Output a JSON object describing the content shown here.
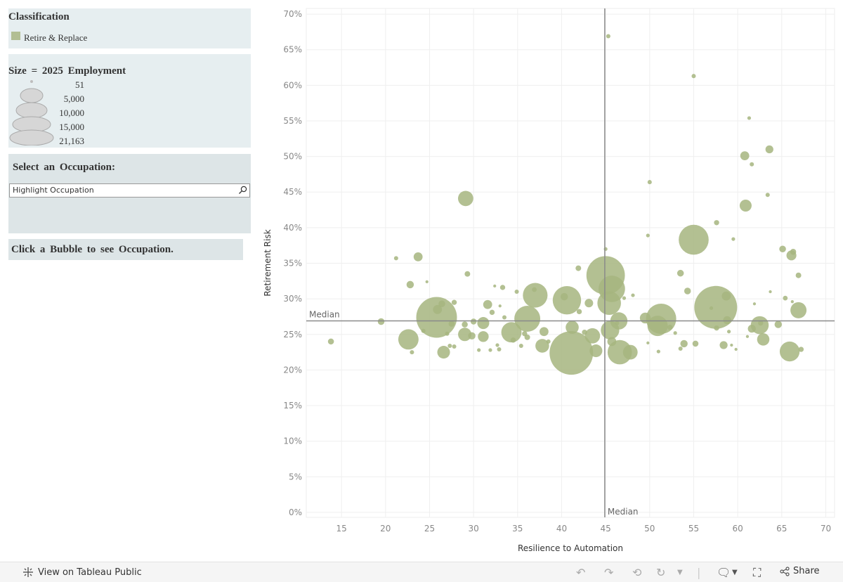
{
  "legend": {
    "classification_title": "Classification",
    "classification_label": "Retire & Replace",
    "classification_color": "#b2be93",
    "size_title": "Size = 2025 Employment",
    "size_labels": [
      "51",
      "5,000",
      "10,000",
      "15,000",
      "21,163"
    ]
  },
  "selector": {
    "title": "Select an Occupation:",
    "placeholder": "Highlight Occupation",
    "search_icon": "search-icon"
  },
  "note": "Click a Bubble to see Occupation.",
  "footer": {
    "view_label": "View on Tableau Public",
    "share_label": "Share",
    "icons": [
      "tableau-logo-icon",
      "undo-icon",
      "redo-icon",
      "revert-icon",
      "refresh-icon",
      "comment-icon",
      "fullscreen-icon",
      "share-icon"
    ]
  },
  "chart_data": {
    "type": "scatter",
    "xlabel": "Resilience to Automation",
    "ylabel": "Retirement Risk",
    "xlim": [
      11,
      71
    ],
    "ylim": [
      -0.7,
      70.8
    ],
    "xticks": [
      15,
      20,
      25,
      30,
      35,
      40,
      45,
      50,
      55,
      60,
      65,
      70
    ],
    "yticks": [
      0,
      5,
      10,
      15,
      20,
      25,
      30,
      35,
      40,
      45,
      50,
      55,
      60,
      65,
      70
    ],
    "ytick_suffix": "%",
    "grid": true,
    "color": "#a6b57f",
    "median_x": 44.9,
    "median_y": 26.9,
    "median_label_x": "Median",
    "median_label_y": "Median",
    "points": [
      {
        "x": 13.8,
        "y": 24.0,
        "size": 400
      },
      {
        "x": 19.5,
        "y": 26.8,
        "size": 500
      },
      {
        "x": 21.2,
        "y": 35.7,
        "size": 200
      },
      {
        "x": 22.8,
        "y": 32.0,
        "size": 600
      },
      {
        "x": 23.0,
        "y": 22.5,
        "size": 200
      },
      {
        "x": 22.6,
        "y": 24.3,
        "size": 4600
      },
      {
        "x": 23.7,
        "y": 35.9,
        "size": 900
      },
      {
        "x": 24.3,
        "y": 25.5,
        "size": 200
      },
      {
        "x": 24.7,
        "y": 32.4,
        "size": 100
      },
      {
        "x": 25.8,
        "y": 27.4,
        "size": 18500
      },
      {
        "x": 25.9,
        "y": 28.5,
        "size": 900
      },
      {
        "x": 26.6,
        "y": 22.5,
        "size": 1800
      },
      {
        "x": 26.4,
        "y": 29.3,
        "size": 500
      },
      {
        "x": 27.0,
        "y": 25.1,
        "size": 200
      },
      {
        "x": 27.3,
        "y": 23.4,
        "size": 200
      },
      {
        "x": 27.5,
        "y": 26.5,
        "size": 400
      },
      {
        "x": 27.8,
        "y": 29.5,
        "size": 300
      },
      {
        "x": 27.8,
        "y": 23.3,
        "size": 200
      },
      {
        "x": 29.1,
        "y": 44.1,
        "size": 2600
      },
      {
        "x": 29.0,
        "y": 26.4,
        "size": 400
      },
      {
        "x": 29.0,
        "y": 25.0,
        "size": 2000
      },
      {
        "x": 29.3,
        "y": 33.5,
        "size": 350
      },
      {
        "x": 29.8,
        "y": 24.8,
        "size": 600
      },
      {
        "x": 30.0,
        "y": 26.8,
        "size": 400
      },
      {
        "x": 30.6,
        "y": 22.8,
        "size": 150
      },
      {
        "x": 31.1,
        "y": 26.6,
        "size": 1600
      },
      {
        "x": 31.1,
        "y": 24.7,
        "size": 1300
      },
      {
        "x": 31.6,
        "y": 29.2,
        "size": 900
      },
      {
        "x": 31.9,
        "y": 22.8,
        "size": 150
      },
      {
        "x": 32.1,
        "y": 28.1,
        "size": 300
      },
      {
        "x": 32.4,
        "y": 31.8,
        "size": 100
      },
      {
        "x": 32.7,
        "y": 23.5,
        "size": 150
      },
      {
        "x": 32.9,
        "y": 22.9,
        "size": 200
      },
      {
        "x": 33.0,
        "y": 29.0,
        "size": 100
      },
      {
        "x": 33.3,
        "y": 31.6,
        "size": 300
      },
      {
        "x": 33.5,
        "y": 27.4,
        "size": 200
      },
      {
        "x": 34.3,
        "y": 25.3,
        "size": 4600
      },
      {
        "x": 34.5,
        "y": 24.2,
        "size": 300
      },
      {
        "x": 34.9,
        "y": 31.0,
        "size": 200
      },
      {
        "x": 35.4,
        "y": 23.4,
        "size": 200
      },
      {
        "x": 35.8,
        "y": 25.1,
        "size": 300
      },
      {
        "x": 36.1,
        "y": 27.2,
        "size": 7500
      },
      {
        "x": 36.1,
        "y": 24.6,
        "size": 350
      },
      {
        "x": 37.0,
        "y": 30.5,
        "size": 6800
      },
      {
        "x": 36.9,
        "y": 31.3,
        "size": 250
      },
      {
        "x": 37.8,
        "y": 23.4,
        "size": 2100
      },
      {
        "x": 38.0,
        "y": 25.4,
        "size": 900
      },
      {
        "x": 38.5,
        "y": 24.0,
        "size": 200
      },
      {
        "x": 40.6,
        "y": 29.8,
        "size": 9000
      },
      {
        "x": 40.3,
        "y": 30.3,
        "size": 600
      },
      {
        "x": 41.1,
        "y": 22.4,
        "size": 21163
      },
      {
        "x": 41.2,
        "y": 26.0,
        "size": 1900
      },
      {
        "x": 41.9,
        "y": 34.3,
        "size": 350
      },
      {
        "x": 42.0,
        "y": 28.2,
        "size": 300
      },
      {
        "x": 42.6,
        "y": 25.3,
        "size": 300
      },
      {
        "x": 43.1,
        "y": 29.4,
        "size": 800
      },
      {
        "x": 43.5,
        "y": 24.8,
        "size": 2600
      },
      {
        "x": 43.9,
        "y": 22.7,
        "size": 1800
      },
      {
        "x": 45.0,
        "y": 33.3,
        "size": 16500
      },
      {
        "x": 45.0,
        "y": 37.0,
        "size": 150
      },
      {
        "x": 45.3,
        "y": 66.9,
        "size": 200
      },
      {
        "x": 45.7,
        "y": 31.4,
        "size": 7800
      },
      {
        "x": 45.4,
        "y": 29.4,
        "size": 6200
      },
      {
        "x": 45.5,
        "y": 25.6,
        "size": 3800
      },
      {
        "x": 45.7,
        "y": 24.0,
        "size": 900
      },
      {
        "x": 46.3,
        "y": 26.6,
        "size": 200
      },
      {
        "x": 46.5,
        "y": 26.9,
        "size": 3300
      },
      {
        "x": 46.6,
        "y": 22.5,
        "size": 6600
      },
      {
        "x": 47.1,
        "y": 30.1,
        "size": 150
      },
      {
        "x": 47.8,
        "y": 22.5,
        "size": 2400
      },
      {
        "x": 48.1,
        "y": 30.5,
        "size": 150
      },
      {
        "x": 49.5,
        "y": 27.3,
        "size": 1300
      },
      {
        "x": 49.8,
        "y": 23.8,
        "size": 100
      },
      {
        "x": 49.8,
        "y": 38.9,
        "size": 150
      },
      {
        "x": 50.0,
        "y": 46.4,
        "size": 200
      },
      {
        "x": 50.9,
        "y": 26.2,
        "size": 4600
      },
      {
        "x": 51.3,
        "y": 27.2,
        "size": 10200
      },
      {
        "x": 51.0,
        "y": 22.6,
        "size": 150
      },
      {
        "x": 52.3,
        "y": 26.0,
        "size": 300
      },
      {
        "x": 52.9,
        "y": 25.2,
        "size": 150
      },
      {
        "x": 53.5,
        "y": 33.6,
        "size": 500
      },
      {
        "x": 53.5,
        "y": 23.0,
        "size": 200
      },
      {
        "x": 53.9,
        "y": 23.7,
        "size": 600
      },
      {
        "x": 54.3,
        "y": 31.1,
        "size": 500
      },
      {
        "x": 55.0,
        "y": 61.3,
        "size": 200
      },
      {
        "x": 55.0,
        "y": 38.3,
        "size": 10000
      },
      {
        "x": 55.2,
        "y": 23.7,
        "size": 400
      },
      {
        "x": 57.0,
        "y": 28.7,
        "size": 150
      },
      {
        "x": 57.6,
        "y": 40.7,
        "size": 300
      },
      {
        "x": 57.6,
        "y": 25.9,
        "size": 300
      },
      {
        "x": 57.5,
        "y": 28.8,
        "size": 20500
      },
      {
        "x": 58.4,
        "y": 23.5,
        "size": 700
      },
      {
        "x": 58.7,
        "y": 30.4,
        "size": 900
      },
      {
        "x": 58.8,
        "y": 27.0,
        "size": 700
      },
      {
        "x": 59.0,
        "y": 25.4,
        "size": 150
      },
      {
        "x": 59.3,
        "y": 23.5,
        "size": 100
      },
      {
        "x": 59.5,
        "y": 38.4,
        "size": 150
      },
      {
        "x": 59.8,
        "y": 22.9,
        "size": 100
      },
      {
        "x": 60.8,
        "y": 50.1,
        "size": 900
      },
      {
        "x": 60.9,
        "y": 43.1,
        "size": 1600
      },
      {
        "x": 61.1,
        "y": 24.7,
        "size": 100
      },
      {
        "x": 61.3,
        "y": 55.4,
        "size": 150
      },
      {
        "x": 61.6,
        "y": 48.9,
        "size": 200
      },
      {
        "x": 61.6,
        "y": 25.8,
        "size": 700
      },
      {
        "x": 61.9,
        "y": 29.3,
        "size": 100
      },
      {
        "x": 62.5,
        "y": 26.3,
        "size": 3600
      },
      {
        "x": 62.9,
        "y": 24.3,
        "size": 1700
      },
      {
        "x": 62.6,
        "y": 26.6,
        "size": 300
      },
      {
        "x": 63.4,
        "y": 44.6,
        "size": 200
      },
      {
        "x": 63.6,
        "y": 51.0,
        "size": 700
      },
      {
        "x": 63.7,
        "y": 31.0,
        "size": 100
      },
      {
        "x": 64.6,
        "y": 26.4,
        "size": 600
      },
      {
        "x": 65.1,
        "y": 37.0,
        "size": 500
      },
      {
        "x": 65.4,
        "y": 30.1,
        "size": 250
      },
      {
        "x": 65.9,
        "y": 22.6,
        "size": 4400
      },
      {
        "x": 66.1,
        "y": 36.1,
        "size": 1100
      },
      {
        "x": 66.2,
        "y": 29.6,
        "size": 100
      },
      {
        "x": 66.3,
        "y": 36.6,
        "size": 400
      },
      {
        "x": 66.9,
        "y": 28.4,
        "size": 2900
      },
      {
        "x": 66.9,
        "y": 33.3,
        "size": 350
      },
      {
        "x": 67.2,
        "y": 22.9,
        "size": 300
      }
    ]
  }
}
